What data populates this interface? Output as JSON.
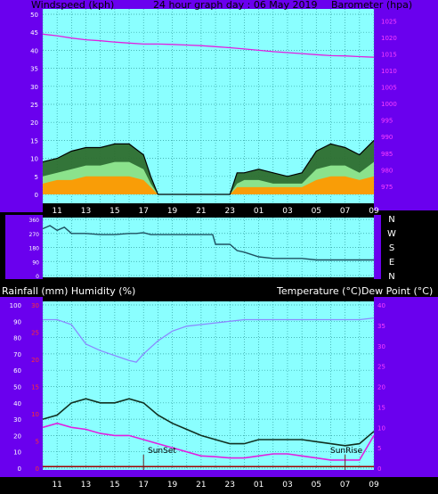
{
  "header": {
    "left": "Windspeed (kph)",
    "center": "24 hour graph day : 06 May 2019",
    "right": "Barometer (hpa)"
  },
  "middle_header": {
    "left": "Rainfall (mm)  Humidity (%)",
    "right": "Temperature (°C)Dew Point (°C)"
  },
  "time_labels": [
    "11",
    "13",
    "15",
    "17",
    "19",
    "21",
    "23",
    "01",
    "03",
    "05",
    "07",
    "09"
  ],
  "compass": [
    "N",
    "W",
    "S",
    "E",
    "N"
  ],
  "annotations": {
    "sunset": "SunSet",
    "sunrise": "SunRise"
  },
  "colors": {
    "frame": "#6a00ee",
    "plot_bg": "#8affff",
    "grid": "#2f9f9f",
    "pressure": "#e020e0",
    "wind_gust": "#000000",
    "wind_speed": "#90e890",
    "wind_avg": "#ff9900",
    "direction": "#1e5060",
    "humidity": "#8a8aff",
    "temperature": "#103020",
    "dewpoint": "#e020e0",
    "rain": "#a00000",
    "axis_red": "#ff3030",
    "axis_white": "#ffffff",
    "axis_pink": "#ff40ff"
  },
  "chart_data": [
    {
      "type": "line",
      "title": "24 hour graph day : 06 May 2019",
      "panel": "wind and barometer",
      "left_axis": {
        "label": "Windspeed (kph)",
        "ticks": [
          0,
          5,
          10,
          15,
          20,
          25,
          30,
          35,
          40,
          45,
          50
        ],
        "range": [
          0,
          50
        ]
      },
      "right_axis": {
        "label": "Barometer (hpa)",
        "ticks": [
          975,
          980,
          985,
          990,
          995,
          1000,
          1005,
          1010,
          1015,
          1020,
          1025
        ],
        "range": [
          972,
          1027
        ]
      },
      "x_hours": [
        10,
        11,
        12,
        13,
        14,
        15,
        16,
        17,
        18,
        19,
        20,
        21,
        22,
        23,
        24,
        25,
        26,
        27,
        28,
        29,
        30,
        31,
        32,
        33
      ],
      "series": [
        {
          "name": "Barometer (hpa)",
          "axis": "right",
          "x": [
            10,
            11,
            12,
            13,
            14,
            15,
            16,
            17,
            18,
            19,
            20,
            21,
            22,
            23,
            24,
            25,
            26,
            27,
            28,
            29,
            30,
            31,
            32,
            33
          ],
          "values": [
            1021,
            1020.5,
            1019.8,
            1019.3,
            1019,
            1018.6,
            1018.3,
            1018,
            1018,
            1017.9,
            1017.7,
            1017.5,
            1017.2,
            1016.9,
            1016.5,
            1016.1,
            1015.7,
            1015.4,
            1015.1,
            1014.8,
            1014.5,
            1014.4,
            1014.2,
            1014
          ]
        },
        {
          "name": "Gust",
          "axis": "left",
          "x": [
            10,
            11,
            12,
            13,
            14,
            15,
            16,
            17,
            17.5,
            18,
            22,
            23,
            23.5,
            24,
            25,
            26,
            27,
            28,
            29,
            30,
            31,
            32,
            33
          ],
          "values": [
            9,
            10,
            12,
            13,
            13,
            14,
            14,
            11,
            5,
            0,
            0,
            0,
            6,
            6,
            7,
            6,
            5,
            6,
            12,
            14,
            13,
            11,
            15
          ]
        },
        {
          "name": "Speed",
          "axis": "left",
          "x": [
            10,
            11,
            12,
            13,
            14,
            15,
            16,
            17,
            17.5,
            18,
            22,
            23,
            23.5,
            24,
            25,
            26,
            27,
            28,
            29,
            30,
            31,
            32,
            33
          ],
          "values": [
            5,
            6,
            7,
            8,
            8,
            9,
            9,
            7,
            3,
            0,
            0,
            0,
            3,
            4,
            4,
            3,
            3,
            3,
            7,
            8,
            8,
            6,
            9
          ]
        },
        {
          "name": "Average",
          "axis": "left",
          "x": [
            10,
            11,
            12,
            13,
            14,
            15,
            16,
            17,
            17.5,
            18,
            22,
            23,
            23.5,
            24,
            25,
            26,
            27,
            28,
            29,
            30,
            31,
            32,
            33
          ],
          "values": [
            3,
            4,
            4,
            5,
            5,
            5,
            5,
            4,
            2,
            0,
            0,
            0,
            2,
            2,
            2,
            2,
            2,
            2,
            4,
            5,
            5,
            4,
            5
          ]
        }
      ]
    },
    {
      "type": "line",
      "panel": "wind direction",
      "left_axis": {
        "ticks": [
          0,
          90,
          180,
          270,
          360
        ],
        "range": [
          0,
          360
        ]
      },
      "series": [
        {
          "name": "Wind direction",
          "x": [
            10,
            10.5,
            11,
            11.5,
            12,
            13,
            14,
            15,
            16,
            16.5,
            17,
            17.5,
            18,
            19,
            20,
            21,
            21.8,
            22,
            23,
            23.5,
            24,
            25,
            26,
            27,
            28,
            29,
            30,
            31,
            32,
            33
          ],
          "values": [
            300,
            320,
            290,
            310,
            270,
            270,
            262,
            262,
            270,
            270,
            275,
            262,
            262,
            262,
            262,
            262,
            262,
            200,
            200,
            160,
            150,
            120,
            110,
            110,
            110,
            100,
            100,
            100,
            100,
            100
          ]
        }
      ]
    },
    {
      "type": "line",
      "panel": "rain humidity temperature",
      "left_axis_humidity": {
        "label": "Humidity (%)",
        "ticks": [
          0,
          10,
          20,
          30,
          40,
          50,
          60,
          70,
          80,
          90,
          100
        ],
        "range": [
          0,
          100
        ]
      },
      "left_axis_rain": {
        "label": "Rainfall (mm)",
        "ticks": [
          0,
          5,
          10,
          15,
          20,
          25,
          30
        ],
        "range": [
          0,
          30
        ]
      },
      "right_axis": {
        "label": "Temperature (°C)Dew Point (°C)",
        "ticks": [
          0,
          5,
          10,
          15,
          20,
          25,
          30,
          35,
          40
        ],
        "range": [
          0,
          40
        ]
      },
      "series": [
        {
          "name": "Humidity (%)",
          "axis": "humidity",
          "x": [
            10,
            11,
            12,
            13,
            14,
            15,
            16,
            16.5,
            17,
            18,
            19,
            20,
            21,
            22,
            23,
            24,
            25,
            26,
            27,
            28,
            29,
            30,
            31,
            32,
            33
          ],
          "values": [
            91,
            91,
            88,
            76,
            72,
            69,
            66,
            65,
            70,
            78,
            84,
            87,
            88,
            89,
            90,
            91,
            91,
            91,
            91,
            91,
            91,
            91,
            91,
            91,
            92
          ]
        },
        {
          "name": "Temperature (°C)",
          "axis": "right",
          "x": [
            10,
            11,
            12,
            13,
            14,
            15,
            16,
            17,
            18,
            19,
            20,
            21,
            22,
            23,
            24,
            25,
            26,
            27,
            28,
            29,
            30,
            31,
            32,
            33
          ],
          "values": [
            12,
            13,
            16,
            17,
            16,
            16,
            17,
            16,
            13,
            11,
            9.5,
            8,
            7,
            6,
            6,
            7,
            7,
            7,
            7,
            6.5,
            6,
            5.5,
            6,
            9
          ]
        },
        {
          "name": "Dew Point (°C)",
          "axis": "right",
          "x": [
            10,
            11,
            12,
            13,
            14,
            15,
            16,
            17,
            18,
            19,
            20,
            21,
            22,
            23,
            24,
            25,
            26,
            27,
            28,
            29,
            30,
            31,
            32,
            33
          ],
          "values": [
            10,
            11,
            10,
            9.5,
            8.5,
            8,
            8,
            7,
            6,
            5,
            4,
            3,
            2.8,
            2.5,
            2.5,
            3,
            3.5,
            3.5,
            3,
            2.5,
            2,
            2,
            2,
            8
          ]
        },
        {
          "name": "Rainfall (mm)",
          "axis": "rain",
          "x": [
            10,
            33
          ],
          "values": [
            0.3,
            0.3
          ]
        }
      ],
      "annotations": [
        {
          "text": "SunSet",
          "x": 17
        },
        {
          "text": "SunRise",
          "x": 31
        }
      ]
    }
  ]
}
